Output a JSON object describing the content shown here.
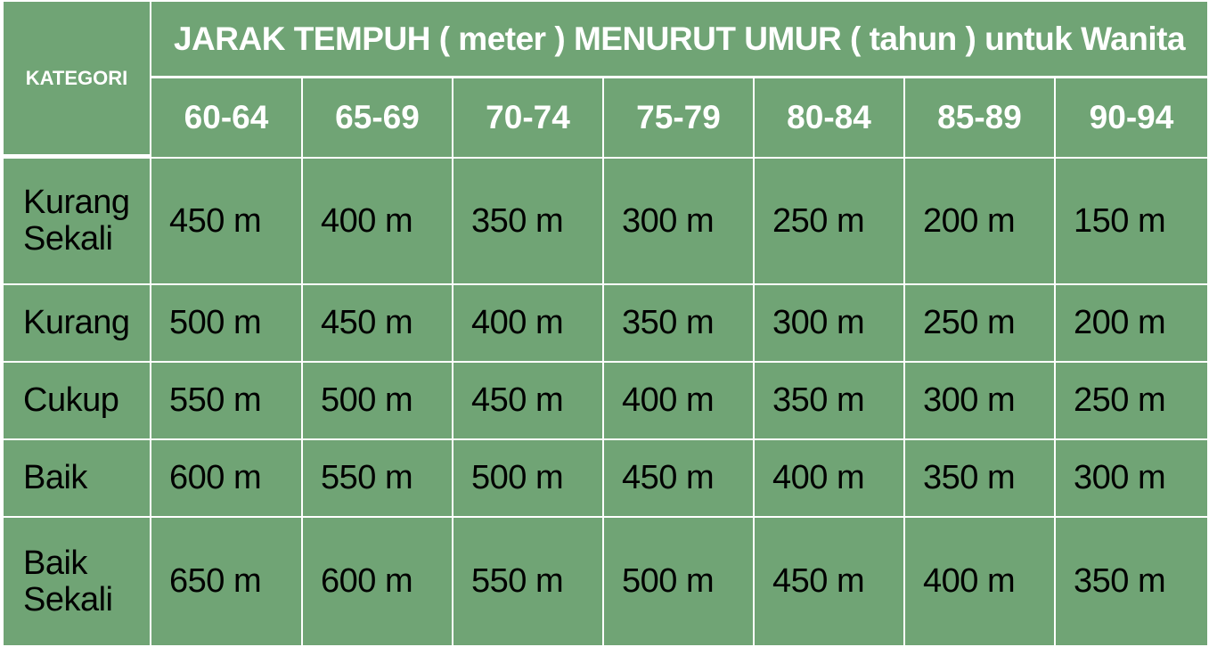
{
  "table": {
    "corner_label": "KATEGORI",
    "title": "JARAK TEMPUH ( meter ) MENURUT UMUR ( tahun ) untuk Wanita",
    "age_groups": [
      "60-64",
      "65-69",
      "70-74",
      "75-79",
      "80-84",
      "85-89",
      "90-94"
    ],
    "rows": [
      {
        "category": [
          "Kurang",
          "Sekali"
        ],
        "values": [
          "450 m",
          "400 m",
          "350 m",
          "300 m",
          "250 m",
          "200 m",
          "150 m"
        ]
      },
      {
        "category": [
          "Kurang"
        ],
        "values": [
          "500 m",
          "450 m",
          "400 m",
          "350 m",
          "300 m",
          "250 m",
          "200 m"
        ]
      },
      {
        "category": [
          "Cukup"
        ],
        "values": [
          "550 m",
          "500 m",
          "450 m",
          "400 m",
          "350 m",
          "300 m",
          "250 m"
        ]
      },
      {
        "category": [
          "Baik"
        ],
        "values": [
          "600 m",
          "550 m",
          "500 m",
          "450 m",
          "400 m",
          "350 m",
          "300 m"
        ]
      },
      {
        "category": [
          "Baik",
          "Sekali"
        ],
        "values": [
          "650 m",
          "600 m",
          "550 m",
          "500 m",
          "450 m",
          "400 m",
          "350 m"
        ]
      }
    ]
  },
  "colors": {
    "cell_bg": "#70a475",
    "grid_lines": "#ffffff",
    "header_text": "#ffffff",
    "body_text": "#000000"
  }
}
